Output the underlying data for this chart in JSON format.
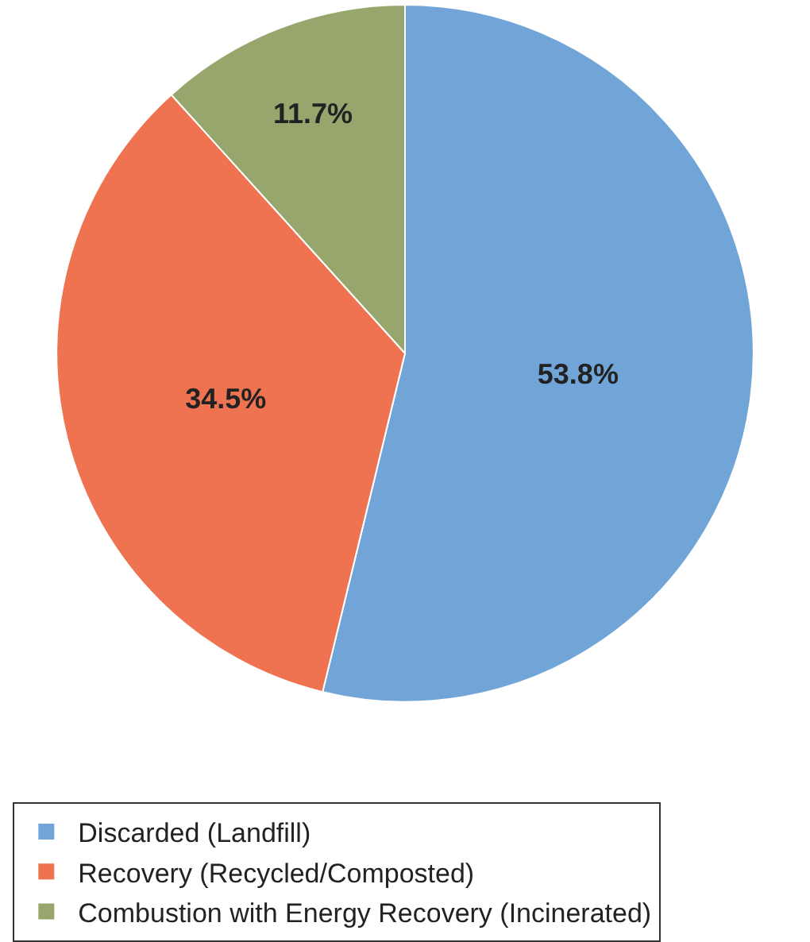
{
  "chart_data": {
    "type": "pie",
    "categories": [
      "Discarded (Landfill)",
      "Recovery (Recycled/Composted)",
      "Combustion with Energy Recovery (Incinerated)"
    ],
    "values": [
      53.8,
      34.5,
      11.7
    ],
    "colors": [
      "#72a5d7",
      "#ef7251",
      "#97a66c"
    ],
    "value_labels": [
      "53.8%",
      "34.5%",
      "11.7%"
    ],
    "legend": "bottom"
  }
}
